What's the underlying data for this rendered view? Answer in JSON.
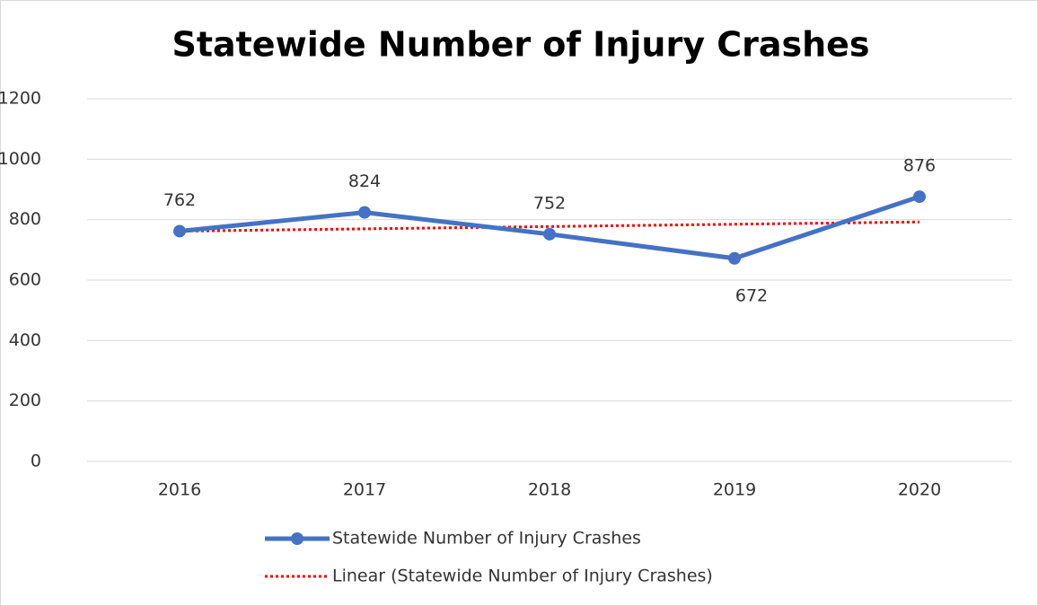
{
  "chart_data": {
    "type": "line",
    "title": "Statewide Number of Injury Crashes",
    "categories": [
      "2016",
      "2017",
      "2018",
      "2019",
      "2020"
    ],
    "series": [
      {
        "name": "Statewide Number of Injury Crashes",
        "color": "#4472c4",
        "values": [
          762,
          824,
          752,
          672,
          876
        ],
        "data_labels": true
      },
      {
        "name": "Linear (Statewide Number of Injury Crashes)",
        "color": "#ff0000",
        "values": [
          762,
          769.6,
          777.2,
          784.8,
          792.4
        ],
        "dotted": true
      }
    ],
    "ylim": [
      0,
      1200
    ],
    "yticks": [
      0,
      200,
      400,
      600,
      800,
      1000,
      1200
    ],
    "grid": true
  }
}
